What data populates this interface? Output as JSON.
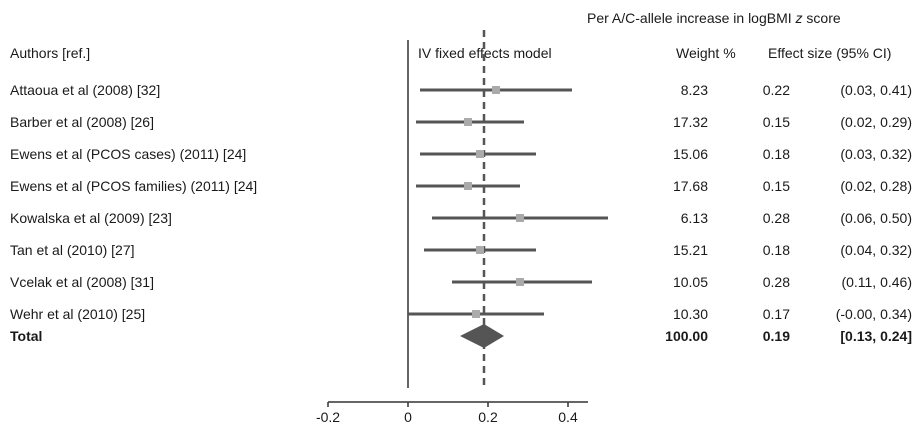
{
  "header": {
    "top_line_prefix": "Per A/C-allele increase in logBMI ",
    "top_line_italic": "z",
    "top_line_suffix": " score",
    "authors": "Authors [ref.]",
    "model": "IV fixed effects model",
    "weight": "Weight %",
    "effect": "Effect size (95% CI)"
  },
  "rows": [
    {
      "label": "Attaoua et al (2008) [32]",
      "weight": "8.23",
      "es": "0.22",
      "ci": "(0.03, 0.41)"
    },
    {
      "label": "Barber et al (2008) [26]",
      "weight": "17.32",
      "es": "0.15",
      "ci": "(0.02, 0.29)"
    },
    {
      "label": "Ewens et al (PCOS cases) (2011) [24]",
      "weight": "15.06",
      "es": "0.18",
      "ci": "(0.03, 0.32)"
    },
    {
      "label": "Ewens et al (PCOS families) (2011) [24]",
      "weight": "17.68",
      "es": "0.15",
      "ci": "(0.02, 0.28)"
    },
    {
      "label": "Kowalska et al (2009) [23]",
      "weight": "6.13",
      "es": "0.28",
      "ci": "(0.06, 0.50)"
    },
    {
      "label": "Tan et al (2010) [27]",
      "weight": "15.21",
      "es": "0.18",
      "ci": "(0.04, 0.32)"
    },
    {
      "label": "Vcelak et al (2008) [31]",
      "weight": "10.05",
      "es": "0.28",
      "ci": "(0.11, 0.46)"
    },
    {
      "label": "Wehr et al (2010) [25]",
      "weight": "10.30",
      "es": "0.17",
      "ci": "(-0.00, 0.34)"
    }
  ],
  "total": {
    "label": "Total",
    "weight": "100.00",
    "es": "0.19",
    "ci": "[0.13, 0.24]"
  },
  "axis": {
    "ticks": [
      "-0.2",
      "0",
      "0.2",
      "0.4"
    ]
  },
  "chart_data": {
    "type": "forest",
    "xlim": [
      -0.2,
      0.45
    ],
    "xticks": [
      -0.2,
      0,
      0.2,
      0.4
    ],
    "null_line": 0,
    "pooled_line": 0.19,
    "studies": [
      {
        "label": "Attaoua et al (2008) [32]",
        "estimate": 0.22,
        "lower": 0.03,
        "upper": 0.41,
        "weight": 8.23
      },
      {
        "label": "Barber et al (2008) [26]",
        "estimate": 0.15,
        "lower": 0.02,
        "upper": 0.29,
        "weight": 17.32
      },
      {
        "label": "Ewens et al (PCOS cases) (2011) [24]",
        "estimate": 0.18,
        "lower": 0.03,
        "upper": 0.32,
        "weight": 15.06
      },
      {
        "label": "Ewens et al (PCOS families) (2011) [24]",
        "estimate": 0.15,
        "lower": 0.02,
        "upper": 0.28,
        "weight": 17.68
      },
      {
        "label": "Kowalska et al (2009) [23]",
        "estimate": 0.28,
        "lower": 0.06,
        "upper": 0.5,
        "weight": 6.13
      },
      {
        "label": "Tan et al (2010) [27]",
        "estimate": 0.18,
        "lower": 0.04,
        "upper": 0.32,
        "weight": 15.21
      },
      {
        "label": "Vcelak et al (2008) [31]",
        "estimate": 0.28,
        "lower": 0.11,
        "upper": 0.46,
        "weight": 10.05
      },
      {
        "label": "Wehr et al (2010) [25]",
        "estimate": 0.17,
        "lower": -0.0,
        "upper": 0.34,
        "weight": 10.3
      }
    ],
    "pooled": {
      "estimate": 0.19,
      "lower": 0.13,
      "upper": 0.24,
      "weight": 100.0
    },
    "colors": {
      "line": "#555555",
      "marker": "#aaaaaa",
      "diamond": "#555555",
      "axis": "#333333"
    }
  }
}
